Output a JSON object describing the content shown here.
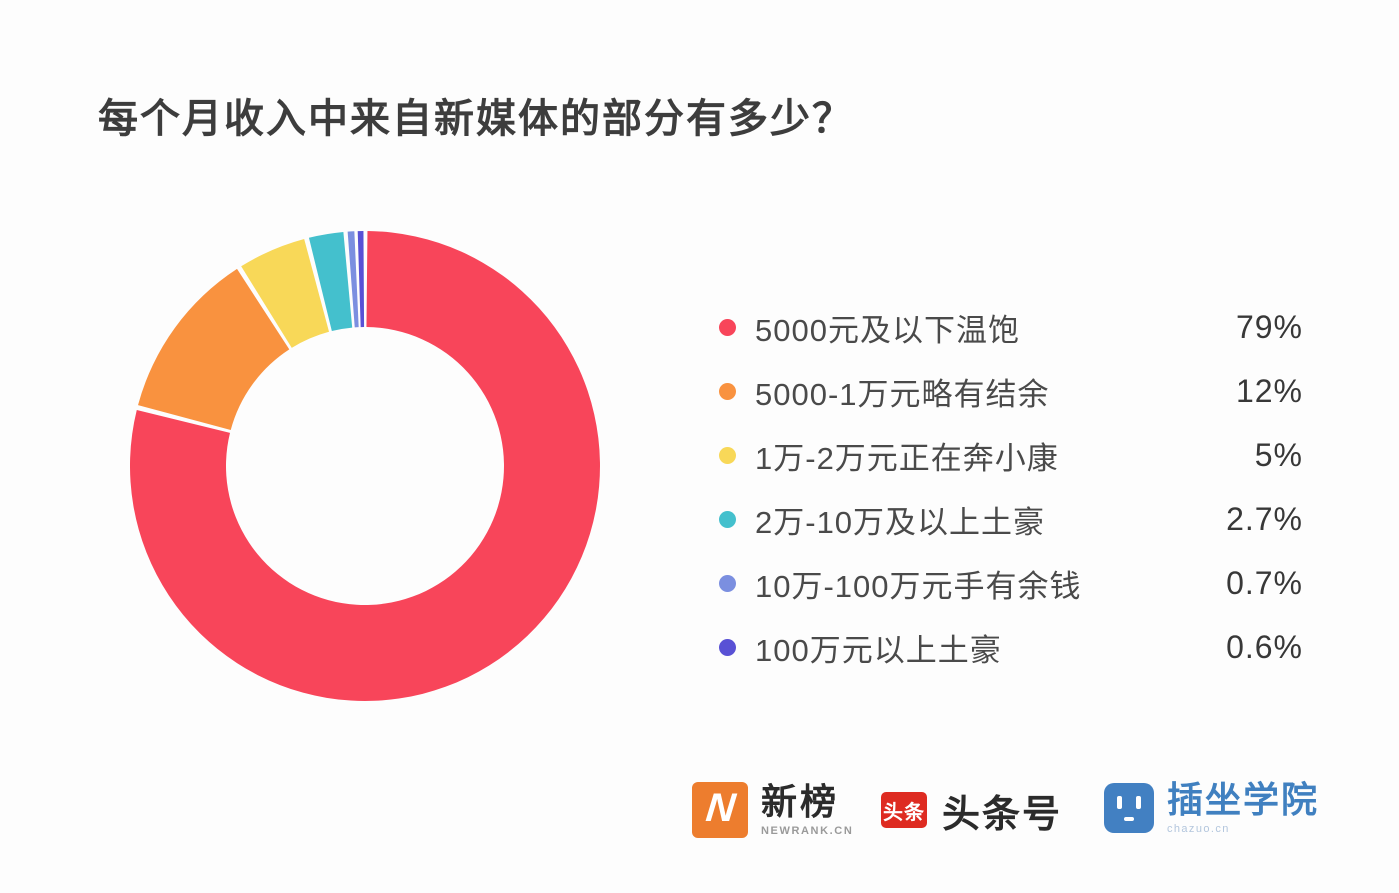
{
  "title": {
    "text": "每个月收入中来自新媒体的部分有多少？"
  },
  "chart_data": {
    "type": "pie",
    "donut": true,
    "title": "每个月收入中来自新媒体的部分有多少？",
    "start_angle_deg": 0,
    "direction": "clockwise",
    "inner_radius_ratio": 0.59,
    "legend_position": "right",
    "segments": [
      {
        "label": "5000元及以下温饱",
        "value_pct": 79,
        "display": "79%",
        "color": "#F8455A"
      },
      {
        "label": "5000-1万元略有结余",
        "value_pct": 12,
        "display": "12%",
        "color": "#F9923F"
      },
      {
        "label": "1万-2万元正在奔小康",
        "value_pct": 5,
        "display": "5%",
        "color": "#F8D858"
      },
      {
        "label": "2万-10万及以上土豪",
        "value_pct": 2.7,
        "display": "2.7%",
        "color": "#44C0CD"
      },
      {
        "label": "10万-100万元手有余钱",
        "value_pct": 0.7,
        "display": "0.7%",
        "color": "#7B8FE0"
      },
      {
        "label": "100万元以上土豪",
        "value_pct": 0.6,
        "display": "0.6%",
        "color": "#5951D5"
      }
    ]
  },
  "footer": {
    "brands": [
      {
        "name": "newrank",
        "logo_letter": "N",
        "label": "新榜",
        "sub_label": "NEWRANK.CN",
        "logo_color": "#ED7D2E"
      },
      {
        "name": "toutiao",
        "logo_text": "头条",
        "label": "头条号",
        "logo_color": "#DE2B21"
      },
      {
        "name": "chazuo",
        "label": "插坐学院",
        "sub_label": "chazuo.cn",
        "logo_color": "#4280C2",
        "label_color": "#4080C0"
      }
    ]
  }
}
